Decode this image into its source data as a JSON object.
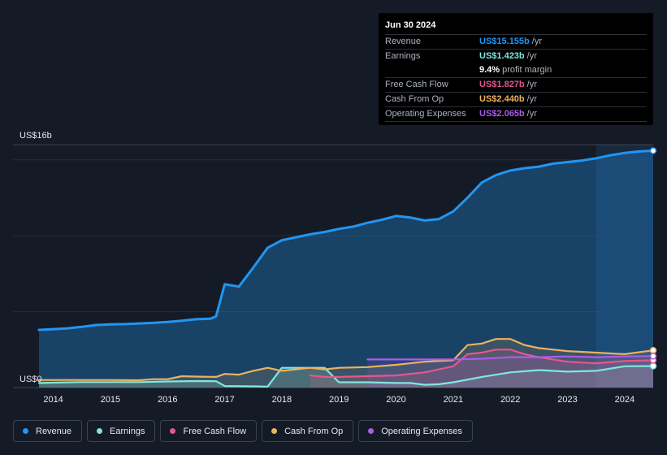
{
  "tooltip": {
    "date": "Jun 30 2024",
    "rows": [
      {
        "label": "Revenue",
        "value": "US$15.155b",
        "unit": "/yr",
        "color": "#2196f3"
      },
      {
        "label": "Earnings",
        "value": "US$1.423b",
        "unit": "/yr",
        "color": "#7fe8dc"
      },
      {
        "label": "Free Cash Flow",
        "value": "US$1.827b",
        "unit": "/yr",
        "color": "#e5578d"
      },
      {
        "label": "Cash From Op",
        "value": "US$2.440b",
        "unit": "/yr",
        "color": "#ecb260"
      },
      {
        "label": "Operating Expenses",
        "value": "US$2.065b",
        "unit": "/yr",
        "color": "#a95dea"
      }
    ],
    "margin_value": "9.4%",
    "margin_text": "profit margin"
  },
  "legend": [
    {
      "label": "Revenue",
      "color": "#2196f3"
    },
    {
      "label": "Earnings",
      "color": "#7fe8dc"
    },
    {
      "label": "Free Cash Flow",
      "color": "#e5578d"
    },
    {
      "label": "Cash From Op",
      "color": "#ecb260"
    },
    {
      "label": "Operating Expenses",
      "color": "#a95dea"
    }
  ],
  "chart_data": {
    "type": "area",
    "title": "",
    "xlabel": "",
    "ylabel": "",
    "y_top_label": "US$16b",
    "y_bottom_label": "US$0",
    "ylim": [
      0,
      16
    ],
    "xlim": [
      2013.75,
      2024.5
    ],
    "x_ticks": [
      "2014",
      "2015",
      "2016",
      "2017",
      "2018",
      "2019",
      "2020",
      "2021",
      "2022",
      "2023",
      "2024"
    ],
    "highlight_start": 2023.5,
    "series": [
      {
        "name": "Revenue",
        "color": "#2196f3",
        "x": [
          2013.75,
          2014,
          2014.25,
          2014.5,
          2014.75,
          2015,
          2015.25,
          2015.5,
          2015.75,
          2016,
          2016.25,
          2016.5,
          2016.75,
          2016.85,
          2017,
          2017.25,
          2017.5,
          2017.75,
          2018,
          2018.25,
          2018.5,
          2018.75,
          2019,
          2019.25,
          2019.5,
          2019.75,
          2020,
          2020.25,
          2020.5,
          2020.75,
          2021,
          2021.25,
          2021.5,
          2021.75,
          2022,
          2022.25,
          2022.5,
          2022.75,
          2023,
          2023.25,
          2023.5,
          2023.75,
          2024,
          2024.25,
          2024.5
        ],
        "values": [
          3.8,
          3.85,
          3.9,
          4.0,
          4.12,
          4.16,
          4.18,
          4.22,
          4.26,
          4.32,
          4.4,
          4.5,
          4.54,
          4.7,
          6.8,
          6.65,
          7.9,
          9.2,
          9.7,
          9.9,
          10.1,
          10.25,
          10.45,
          10.6,
          10.85,
          11.05,
          11.3,
          11.2,
          11.0,
          11.1,
          11.6,
          12.5,
          13.5,
          14.0,
          14.3,
          14.45,
          14.55,
          14.75,
          14.85,
          14.95,
          15.1,
          15.3,
          15.45,
          15.55,
          15.6
        ]
      },
      {
        "name": "Earnings",
        "color": "#7fe8dc",
        "x": [
          2013.75,
          2014,
          2014.5,
          2015,
          2015.5,
          2016,
          2016.5,
          2016.85,
          2017,
          2017.5,
          2017.75,
          2018,
          2018.5,
          2018.75,
          2019,
          2019.5,
          2020,
          2020.25,
          2020.5,
          2020.75,
          2021,
          2021.5,
          2022,
          2022.5,
          2023,
          2023.5,
          2024,
          2024.5
        ],
        "values": [
          0.3,
          0.32,
          0.36,
          0.36,
          0.36,
          0.4,
          0.43,
          0.42,
          0.1,
          0.08,
          0.06,
          1.3,
          1.3,
          1.3,
          0.35,
          0.35,
          0.3,
          0.3,
          0.18,
          0.22,
          0.35,
          0.7,
          1.0,
          1.15,
          1.05,
          1.1,
          1.4,
          1.42
        ]
      },
      {
        "name": "Free Cash Flow",
        "color": "#e5578d",
        "x": [
          2018.5,
          2018.75,
          2019,
          2019.5,
          2020,
          2020.5,
          2021,
          2021.25,
          2021.5,
          2021.75,
          2022,
          2022.25,
          2022.5,
          2022.75,
          2023,
          2023.5,
          2024,
          2024.5
        ],
        "values": [
          0.8,
          0.7,
          0.7,
          0.75,
          0.8,
          1.0,
          1.4,
          2.2,
          2.3,
          2.5,
          2.5,
          2.2,
          2.0,
          1.85,
          1.7,
          1.6,
          1.75,
          1.8
        ]
      },
      {
        "name": "Cash From Op",
        "color": "#ecb260",
        "x": [
          2013.75,
          2014,
          2014.5,
          2015,
          2015.5,
          2015.75,
          2016,
          2016.25,
          2016.5,
          2016.85,
          2017,
          2017.25,
          2017.5,
          2017.75,
          2018,
          2018.5,
          2018.75,
          2019,
          2019.5,
          2020,
          2020.5,
          2021,
          2021.25,
          2021.5,
          2021.75,
          2022,
          2022.25,
          2022.5,
          2022.75,
          2023,
          2023.5,
          2024,
          2024.5
        ],
        "values": [
          0.5,
          0.5,
          0.5,
          0.5,
          0.48,
          0.55,
          0.55,
          0.75,
          0.72,
          0.7,
          0.9,
          0.85,
          1.1,
          1.3,
          1.1,
          1.3,
          1.2,
          1.3,
          1.35,
          1.5,
          1.7,
          1.8,
          2.8,
          2.9,
          3.2,
          3.2,
          2.8,
          2.6,
          2.5,
          2.4,
          2.3,
          2.2,
          2.45
        ]
      },
      {
        "name": "Operating Expenses",
        "color": "#a95dea",
        "x": [
          2019.5,
          2019.75,
          2020,
          2020.5,
          2021,
          2021.5,
          2022,
          2022.5,
          2023,
          2023.5,
          2024,
          2024.5
        ],
        "values": [
          1.85,
          1.85,
          1.85,
          1.85,
          1.85,
          1.9,
          2.0,
          2.0,
          2.05,
          2.0,
          2.05,
          2.07
        ]
      }
    ]
  }
}
